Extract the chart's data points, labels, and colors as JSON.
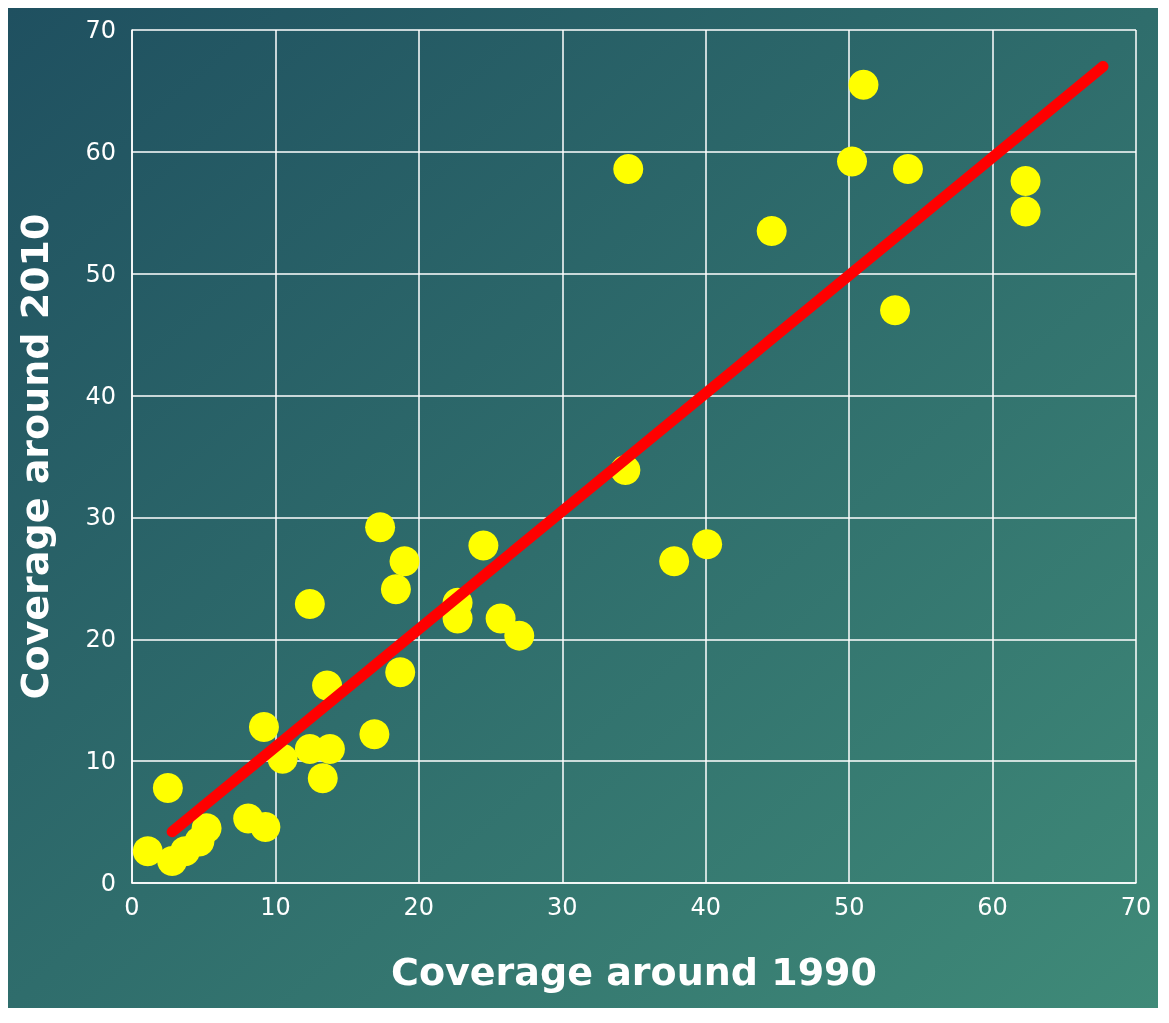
{
  "chart_data": {
    "type": "scatter",
    "xlabel": "Coverage around 1990",
    "ylabel": "Coverage around 2010",
    "xlim": [
      0,
      70
    ],
    "xticks": [
      0,
      10,
      20,
      30,
      40,
      50,
      60,
      70
    ],
    "ylim": [
      0,
      70
    ],
    "yticks": [
      0,
      10,
      20,
      30,
      40,
      50,
      60,
      70
    ],
    "grid": true,
    "marker": "circle",
    "series": [
      {
        "type": "scatter",
        "color": "#ffff00",
        "x": [
          1.1,
          2.5,
          2.8,
          3.7,
          4.7,
          5.2,
          8.1,
          9.3,
          9.2,
          10.5,
          12.4,
          12.4,
          13.3,
          13.8,
          13.6,
          16.9,
          17.3,
          18.4,
          19.0,
          18.7,
          22.7,
          22.7,
          24.5,
          25.7,
          27.0,
          34.4,
          34.6,
          37.8,
          40.1,
          44.6,
          50.2,
          51.0,
          53.2,
          54.1,
          62.3,
          62.3
        ],
        "values": [
          2.6,
          7.8,
          1.8,
          2.6,
          3.4,
          4.5,
          5.3,
          4.6,
          12.8,
          10.2,
          22.9,
          11.0,
          8.6,
          11.0,
          16.2,
          12.2,
          29.2,
          24.1,
          26.4,
          17.3,
          23.0,
          21.7,
          27.7,
          21.7,
          20.3,
          33.9,
          58.6,
          26.4,
          27.8,
          53.5,
          59.2,
          65.5,
          47.0,
          58.6,
          57.6,
          55.1
        ]
      },
      {
        "type": "line",
        "color": "#ff0000",
        "marker": "none",
        "line_style": "solid",
        "x": [
          2.8,
          67.7
        ],
        "values": [
          4.2,
          67.0
        ]
      }
    ]
  }
}
